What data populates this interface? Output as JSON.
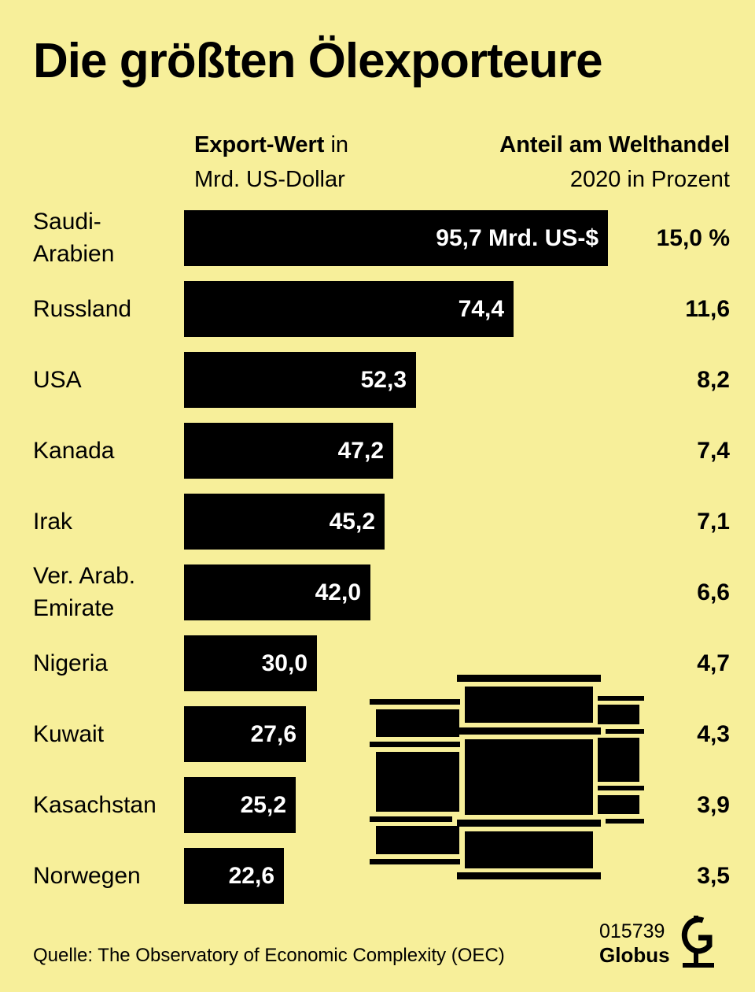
{
  "title": "Die größten Ölexporteure",
  "header": {
    "left_bold": "Export-Wert",
    "left_rest": " in",
    "left_line2": "Mrd. US-Dollar",
    "right_line1": "Anteil am Welthandel",
    "right_line2": "2020 in Prozent"
  },
  "chart_data": {
    "type": "bar",
    "orientation": "horizontal",
    "title": "Die größten Ölexporteure",
    "xlabel": "Export-Wert in Mrd. US-Dollar",
    "categories": [
      "Saudi-Arabien",
      "Russland",
      "USA",
      "Kanada",
      "Irak",
      "Ver. Arab. Emirate",
      "Nigeria",
      "Kuwait",
      "Kasachstan",
      "Norwegen"
    ],
    "series": [
      {
        "name": "Export-Wert in Mrd. US-Dollar",
        "values": [
          95.7,
          74.4,
          52.3,
          47.2,
          45.2,
          42.0,
          30.0,
          27.6,
          25.2,
          22.6
        ]
      },
      {
        "name": "Anteil am Welthandel 2020 in Prozent",
        "values": [
          15.0,
          11.6,
          8.2,
          7.4,
          7.1,
          6.6,
          4.7,
          4.3,
          3.9,
          3.5
        ]
      }
    ],
    "xlim": [
      0,
      95.7
    ]
  },
  "rows": [
    {
      "label_line1": "Saudi-",
      "label_line2": "Arabien",
      "value_text": "95,7 Mrd. US-$",
      "share_text": "15,0 %"
    },
    {
      "label_line1": "Russland",
      "label_line2": "",
      "value_text": "74,4",
      "share_text": "11,6"
    },
    {
      "label_line1": "USA",
      "label_line2": "",
      "value_text": "52,3",
      "share_text": "8,2"
    },
    {
      "label_line1": "Kanada",
      "label_line2": "",
      "value_text": "47,2",
      "share_text": "7,4"
    },
    {
      "label_line1": "Irak",
      "label_line2": "",
      "value_text": "45,2",
      "share_text": "7,1"
    },
    {
      "label_line1": "Ver. Arab.",
      "label_line2": "Emirate",
      "value_text": "42,0",
      "share_text": "6,6"
    },
    {
      "label_line1": "Nigeria",
      "label_line2": "",
      "value_text": "30,0",
      "share_text": "4,7"
    },
    {
      "label_line1": "Kuwait",
      "label_line2": "",
      "value_text": "27,6",
      "share_text": "4,3"
    },
    {
      "label_line1": "Kasachstan",
      "label_line2": "",
      "value_text": "25,2",
      "share_text": "3,9"
    },
    {
      "label_line1": "Norwegen",
      "label_line2": "",
      "value_text": "22,6",
      "share_text": "3,5"
    }
  ],
  "footer": {
    "source": "Quelle: The Observatory of Economic Complexity (OEC)",
    "code": "015739",
    "brand": "Globus"
  },
  "colors": {
    "background": "#F7EF9A",
    "bar": "#000000",
    "bar_text": "#FFFFFF"
  }
}
